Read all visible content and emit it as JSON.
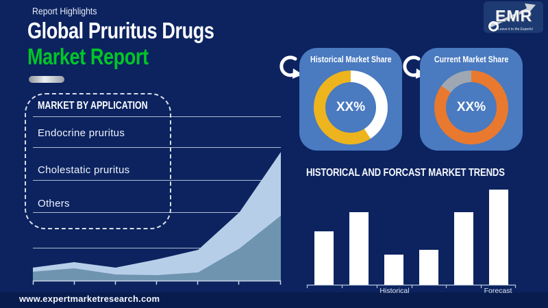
{
  "header": {
    "eyebrow": "Report Highlights",
    "title_line1": "Global Pruritus Drugs",
    "title_line2": "Market Report"
  },
  "logo": {
    "name": "EMR",
    "tagline": "Leave it to the Experts!"
  },
  "application_panel": {
    "title": "MARKET BY APPLICATION",
    "items": [
      {
        "label": "Endocrine pruritus"
      },
      {
        "label": "Cholestatic pruritus"
      },
      {
        "label": "Others"
      }
    ]
  },
  "share_cards": [
    {
      "title": "Historical Market Share",
      "value": "XX%"
    },
    {
      "title": "Current Market Share",
      "value": "XX%"
    }
  ],
  "trends": {
    "title": "HISTORICAL AND FORCAST MARKET TRENDS",
    "axis_label_historical": "Historical",
    "axis_label_forecast": "Forecast"
  },
  "footer": {
    "url": "www.expertmarketresearch.com"
  },
  "colors": {
    "background": "#0c2360",
    "footer_bg": "#081c4e",
    "accent_green": "#00c627",
    "card_blue": "#4a7ac0",
    "donut_yellow": "#eeb41e",
    "donut_orange": "#e9792e",
    "donut_gray": "#9fa8b2",
    "area_light": "#b7cee8",
    "area_medium": "#6e94b0",
    "bar_fill": "#ffffff",
    "grid_line": "#c2cfe0",
    "logo_bg": "#1d3a72"
  },
  "chart_data": [
    {
      "id": "historical-share-donut",
      "type": "pie",
      "title": "Historical Market Share",
      "center_label": "XX%",
      "segments": [
        {
          "name": "share",
          "color": "#ffffff",
          "pct": 41
        },
        {
          "name": "remainder",
          "color": "#eeb41e",
          "pct": 59
        }
      ],
      "note": "donut ring, white segment clockwise from 12 o'clock, value is placeholder XX%"
    },
    {
      "id": "current-share-donut",
      "type": "pie",
      "title": "Current Market Share",
      "center_label": "XX%",
      "segments": [
        {
          "name": "share",
          "color": "#e9792e",
          "pct": 85
        },
        {
          "name": "remainder",
          "color": "#9fa8b2",
          "pct": 15
        }
      ],
      "note": "donut ring, orange segment clockwise from 12 o'clock, gray sliver before 12 o'clock"
    },
    {
      "id": "market-trend-bars",
      "type": "bar",
      "title": "HISTORICAL AND FORCAST MARKET TRENDS",
      "categories": [
        "",
        "",
        "Historical",
        "",
        "",
        "Forecast"
      ],
      "values": [
        56,
        76,
        32,
        37,
        76,
        100
      ],
      "ylim": [
        0,
        100
      ],
      "legend": "none",
      "grid": "off",
      "note": "unlabeled white placeholder bars, relative heights in % of tallest bar"
    },
    {
      "id": "application-area",
      "type": "area",
      "x": [
        0,
        1,
        2,
        3,
        4,
        5,
        6
      ],
      "series": [
        {
          "name": "upper",
          "color": "#b7cee8",
          "values": [
            19,
            27,
            19,
            31,
            45,
            100,
            188
          ]
        },
        {
          "name": "lower",
          "color": "#6e94b0",
          "values": [
            13,
            18,
            9,
            8,
            12,
            47,
            95
          ]
        }
      ],
      "grid": "on",
      "legend": "none",
      "note": "decorative stacked growth curve behind MARKET BY APPLICATION panel, arbitrary units"
    }
  ]
}
